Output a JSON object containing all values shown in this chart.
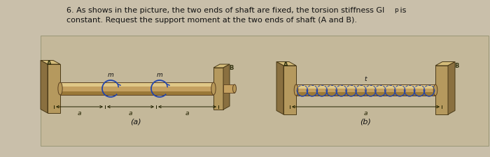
{
  "bg_color": "#c9bfaa",
  "diagram_bg": "#c4b99e",
  "title_line1": "6. As shows in the picture, the two ends of shaft are fixed, the torsion stiffness GI",
  "title_line1_sub": "p",
  "title_line2": "constant. Request the support moment at the two ends of shaft (A and B).",
  "title_suffix": " is",
  "wall_face": "#b5995e",
  "wall_top": "#d4bc7a",
  "wall_side": "#8a7040",
  "wall_edge": "#4a3a18",
  "shaft_mid": "#c4a060",
  "shaft_top": "#e0c888",
  "shaft_bot": "#9a7838",
  "shaft_edge": "#5a4020",
  "spring_color": "#2244aa",
  "dim_color": "#222200",
  "label_color": "#333311"
}
